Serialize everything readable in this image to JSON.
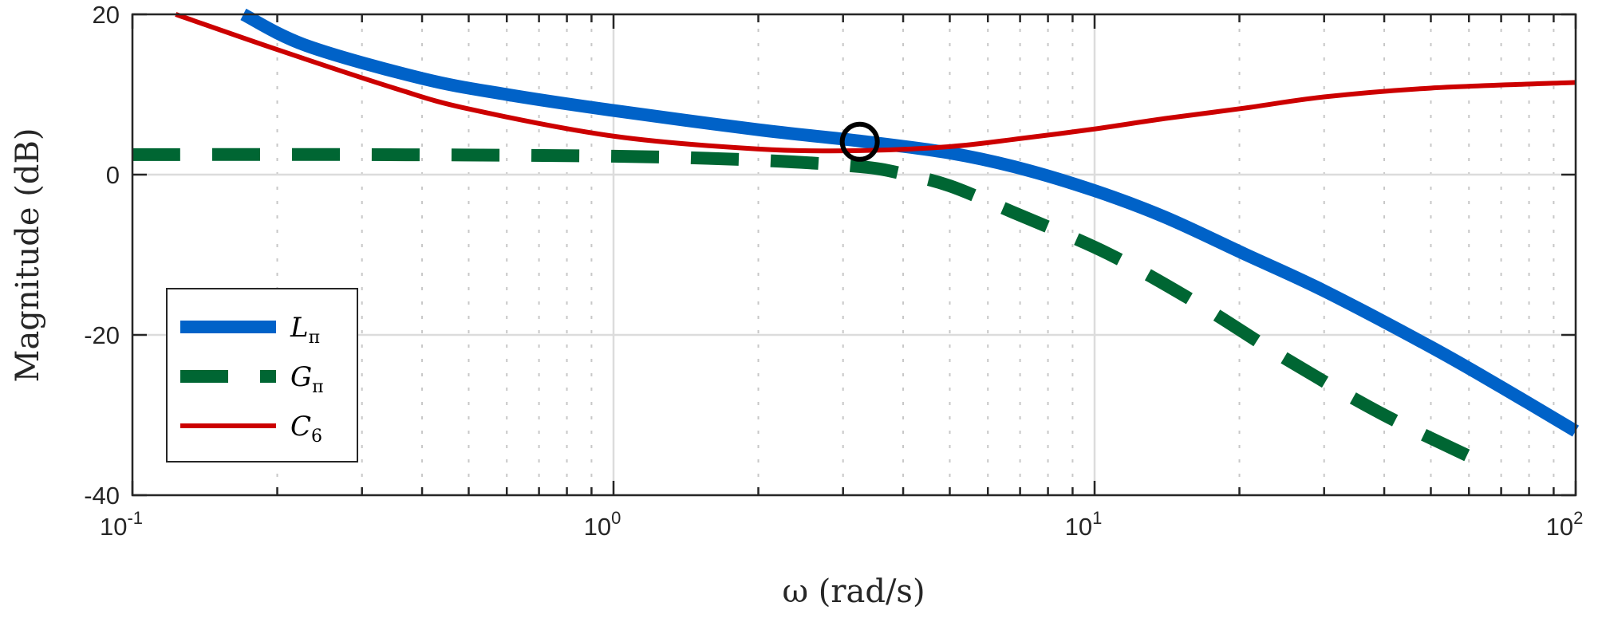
{
  "chart_data": {
    "type": "line",
    "title": "",
    "xlabel": "ω (rad/s)",
    "ylabel": "Magnitude (dB)",
    "xscale": "log",
    "xlim": [
      0.1,
      100
    ],
    "ylim": [
      -40,
      20
    ],
    "grid": true,
    "x_ticks": [
      {
        "base": "10",
        "exp": "-1",
        "value": 0.1
      },
      {
        "base": "10",
        "exp": "0",
        "value": 1
      },
      {
        "base": "10",
        "exp": "1",
        "value": 10
      },
      {
        "base": "10",
        "exp": "2",
        "value": 100
      }
    ],
    "y_ticks": [
      {
        "label": "20",
        "value": 20
      },
      {
        "label": "0",
        "value": 0
      },
      {
        "label": "-20",
        "value": -20
      },
      {
        "label": "-40",
        "value": -40
      }
    ],
    "legend": {
      "placement": "bottom-left"
    },
    "series": [
      {
        "name": "L",
        "sub": "π",
        "color": "#0062c8",
        "style": "solid-thick",
        "x": [
          0.17,
          0.23,
          0.4,
          0.6,
          1,
          2,
          3.25,
          5,
          7,
          10,
          14,
          20.5,
          30,
          50,
          70,
          100
        ],
        "y": [
          20,
          16.1,
          12,
          10,
          8,
          5.6,
          4.2,
          2.7,
          0.8,
          -2,
          -5.3,
          -9.9,
          -14.5,
          -21.5,
          -26.5,
          -32
        ]
      },
      {
        "name": "G",
        "sub": "π",
        "color": "#006633",
        "style": "dashed",
        "x": [
          0.1,
          0.3,
          1,
          2,
          3.25,
          4,
          5,
          6.77,
          10.7,
          16.5,
          25,
          40,
          67
        ],
        "y": [
          2.5,
          2.5,
          2.3,
          1.8,
          1.0,
          0.1,
          -1.4,
          -4.7,
          -9.9,
          -16.2,
          -23,
          -30,
          -36.5
        ]
      },
      {
        "name": "C",
        "sub": "6",
        "color": "#cc0000",
        "style": "solid",
        "x": [
          0.123,
          0.2,
          0.35,
          0.5,
          1,
          2,
          3.25,
          5,
          7,
          10,
          14,
          20.5,
          30,
          50,
          100
        ],
        "y": [
          20,
          15.6,
          10.8,
          8.2,
          4.8,
          3.2,
          3.0,
          3.5,
          4.5,
          5.7,
          7.0,
          8.3,
          9.7,
          10.8,
          11.5
        ]
      }
    ],
    "annotations": [
      {
        "type": "circle-marker",
        "x": 3.25,
        "y": 4.1
      }
    ]
  }
}
